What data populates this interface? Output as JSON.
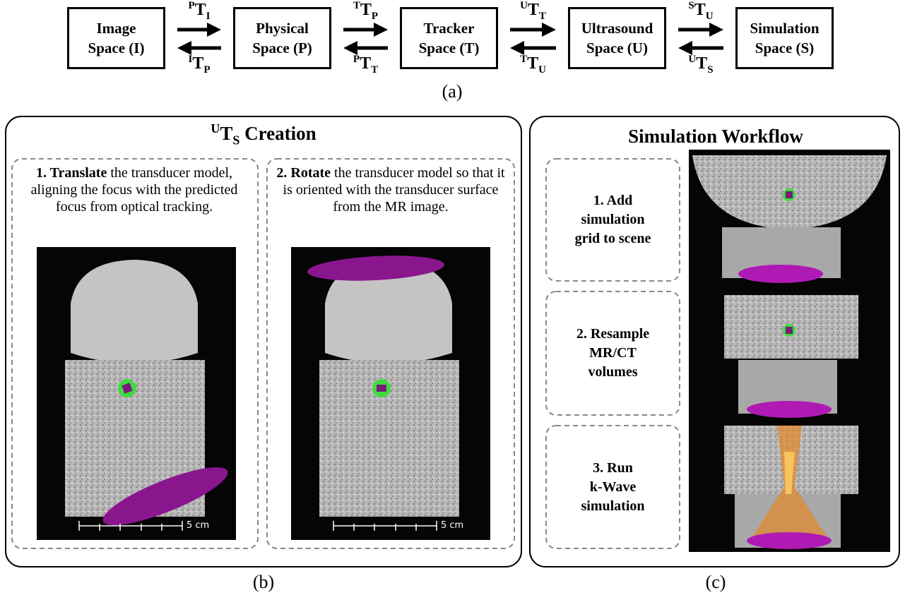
{
  "diagram": {
    "nodes": [
      {
        "lines": [
          "Image",
          "Space (I)"
        ]
      },
      {
        "lines": [
          "Physical",
          "Space (P)"
        ]
      },
      {
        "lines": [
          "Tracker",
          "Space (T)"
        ]
      },
      {
        "lines": [
          "Ultrasound",
          "Space (U)"
        ]
      },
      {
        "lines": [
          "Simulation",
          "Space (S)"
        ]
      }
    ],
    "links": [
      {
        "forward": {
          "sup": "P",
          "base": "T",
          "sub": "I"
        },
        "backward": {
          "sup": "I",
          "base": "T",
          "sub": "P"
        }
      },
      {
        "forward": {
          "sup": "T",
          "base": "T",
          "sub": "P"
        },
        "backward": {
          "sup": "P",
          "base": "T",
          "sub": "T"
        }
      },
      {
        "forward": {
          "sup": "U",
          "base": "T",
          "sub": "T"
        },
        "backward": {
          "sup": "T",
          "base": "T",
          "sub": "U"
        }
      },
      {
        "forward": {
          "sup": "S",
          "base": "T",
          "sub": "U"
        },
        "backward": {
          "sup": "U",
          "base": "T",
          "sub": "S"
        }
      }
    ],
    "label": "(a)"
  },
  "panel_b": {
    "title": {
      "sup": "U",
      "base": "T",
      "sub": "S",
      "text": " Creation"
    },
    "steps": [
      {
        "bold": "1. Translate",
        "text": " the transducer model, aligning the focus with the predicted focus from optical tracking."
      },
      {
        "bold": "2. Rotate",
        "text": " the transducer model so that it is oriented with the transducer surface from the MR image."
      }
    ],
    "scale_label": "5 cm",
    "label": "(b)"
  },
  "panel_c": {
    "title": "Simulation Workflow",
    "steps": [
      [
        "1. Add",
        "simulation",
        "grid to scene"
      ],
      [
        "2. Resample",
        "MR/CT",
        "volumes"
      ],
      [
        "3. Run",
        "k-Wave",
        "simulation"
      ]
    ],
    "label": "(c)"
  }
}
